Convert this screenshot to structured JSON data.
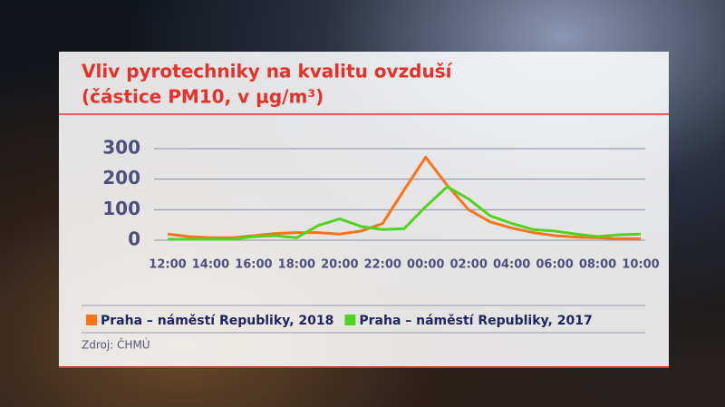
{
  "chart_data": {
    "type": "line",
    "title": "Vliv pyrotechniky na kvalitu ovzduší",
    "subtitle": "(částice PM10, v μg/m³)",
    "categories": [
      "12:00",
      null,
      "14:00",
      null,
      "16:00",
      null,
      "18:00",
      null,
      "20:00",
      null,
      "22:00",
      null,
      "00:00",
      null,
      "02:00",
      null,
      "04:00",
      null,
      "06:00",
      null,
      "08:00",
      null,
      "10:00"
    ],
    "series": [
      {
        "name": "Praha – náměstí Republiky, 2018",
        "color": "#f7731c",
        "values": [
          20,
          12,
          8,
          8,
          15,
          22,
          25,
          25,
          20,
          30,
          55,
          165,
          272,
          180,
          100,
          60,
          40,
          25,
          15,
          10,
          8,
          5,
          5
        ]
      },
      {
        "name": "Praha – náměstí Republiky, 2017",
        "color": "#52d321",
        "values": [
          3,
          3,
          3,
          3,
          12,
          15,
          8,
          48,
          70,
          45,
          35,
          38,
          110,
          175,
          135,
          80,
          55,
          35,
          30,
          20,
          12,
          18,
          20
        ]
      }
    ],
    "ylim": [
      0,
      300
    ],
    "yticks": [
      0,
      100,
      200,
      300
    ],
    "grid": true,
    "source": "Zdroj: ČHMÚ"
  }
}
